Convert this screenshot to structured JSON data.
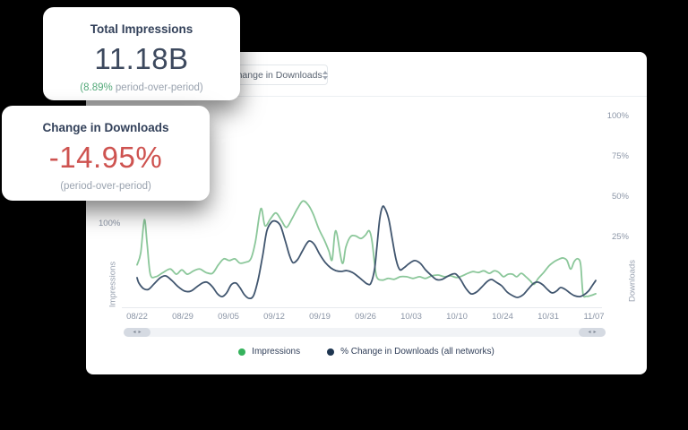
{
  "colors": {
    "line_impressions": "#8bc79a",
    "line_downloads": "#41566f",
    "value_negative": "#ce5350",
    "value_positive": "#53a979"
  },
  "cards": [
    {
      "title": "Total Impressions",
      "value": "11.18B",
      "footnote_highlight": "(8.89%",
      "footnote_rest": " period-over-period)"
    },
    {
      "title": "Change in Downloads",
      "value": "-14.95%",
      "footnote": "(period-over-period)"
    }
  ],
  "panel": {
    "dropdown": {
      "value": "Change in Downloads"
    },
    "left_axis": {
      "title": "Impressions",
      "tick": "100%"
    },
    "right_axis": {
      "title": "Downloads",
      "ticks": [
        "100%",
        "75%",
        "50%",
        "25%"
      ]
    },
    "x_axis": {
      "ticks": [
        "08/22",
        "08/29",
        "09/05",
        "09/12",
        "09/19",
        "09/26",
        "10/03",
        "10/10",
        "10/24",
        "10/31",
        "11/07"
      ]
    },
    "legend": [
      {
        "label": "Impressions",
        "color": "#35b25c"
      },
      {
        "label": "% Change in Downloads (all networks)",
        "color": "#1e3550"
      }
    ],
    "scroll_arrows": {
      "left": "◂",
      "right": "▸"
    }
  },
  "chart_data": {
    "type": "line",
    "x_ticks": [
      "08/22",
      "08/29",
      "09/05",
      "09/12",
      "09/19",
      "09/26",
      "10/03",
      "10/10",
      "10/24",
      "10/31",
      "11/07"
    ],
    "left_axis": {
      "label": "Impressions",
      "visible_ticks": [
        "100%"
      ],
      "units": "percent"
    },
    "right_axis": {
      "label": "Downloads",
      "visible_ticks": [
        "100%",
        "75%",
        "50%",
        "25%"
      ],
      "approx_range": [
        -20,
        120
      ]
    },
    "legend_position": "bottom",
    "grid": false,
    "series": [
      {
        "name": "Impressions",
        "axis": "left",
        "units": "percent_of_left_axis",
        "points": [
          [
            0,
            52
          ],
          [
            0.08,
            66
          ],
          [
            0.16,
            105
          ],
          [
            0.22,
            77
          ],
          [
            0.29,
            41
          ],
          [
            0.41,
            38
          ],
          [
            0.57,
            43
          ],
          [
            0.73,
            47
          ],
          [
            0.86,
            41
          ],
          [
            0.98,
            46
          ],
          [
            1.1,
            41
          ],
          [
            1.24,
            45
          ],
          [
            1.37,
            47
          ],
          [
            1.51,
            43
          ],
          [
            1.65,
            42
          ],
          [
            1.78,
            52
          ],
          [
            1.9,
            59
          ],
          [
            2.02,
            57
          ],
          [
            2.14,
            59
          ],
          [
            2.25,
            54
          ],
          [
            2.37,
            55
          ],
          [
            2.49,
            59
          ],
          [
            2.59,
            79
          ],
          [
            2.71,
            118
          ],
          [
            2.8,
            98
          ],
          [
            2.92,
            106
          ],
          [
            3.04,
            113
          ],
          [
            3.16,
            104
          ],
          [
            3.27,
            96
          ],
          [
            3.39,
            106
          ],
          [
            3.51,
            118
          ],
          [
            3.63,
            127
          ],
          [
            3.75,
            122
          ],
          [
            3.86,
            111
          ],
          [
            3.98,
            94
          ],
          [
            4.1,
            81
          ],
          [
            4.2,
            68
          ],
          [
            4.27,
            58
          ],
          [
            4.35,
            92
          ],
          [
            4.49,
            54
          ],
          [
            4.57,
            73
          ],
          [
            4.67,
            85
          ],
          [
            4.78,
            86
          ],
          [
            4.9,
            83
          ],
          [
            5,
            87
          ],
          [
            5.08,
            92
          ],
          [
            5.14,
            81
          ],
          [
            5.2,
            53
          ],
          [
            5.25,
            37
          ],
          [
            5.37,
            34
          ],
          [
            5.49,
            36
          ],
          [
            5.63,
            35
          ],
          [
            5.76,
            38
          ],
          [
            5.9,
            38
          ],
          [
            6.04,
            36
          ],
          [
            6.18,
            38
          ],
          [
            6.31,
            36
          ],
          [
            6.45,
            39
          ],
          [
            6.59,
            40
          ],
          [
            6.73,
            38
          ],
          [
            6.86,
            39
          ],
          [
            7,
            37
          ],
          [
            7.12,
            39
          ],
          [
            7.24,
            42
          ],
          [
            7.35,
            44
          ],
          [
            7.47,
            43
          ],
          [
            7.59,
            45
          ],
          [
            7.71,
            42
          ],
          [
            7.82,
            45
          ],
          [
            7.92,
            43
          ],
          [
            8.02,
            38
          ],
          [
            8.12,
            41
          ],
          [
            8.22,
            41
          ],
          [
            8.31,
            38
          ],
          [
            8.41,
            42
          ],
          [
            8.51,
            38
          ],
          [
            8.61,
            33
          ],
          [
            8.69,
            29
          ],
          [
            8.78,
            36
          ],
          [
            8.9,
            43
          ],
          [
            9.02,
            51
          ],
          [
            9.14,
            56
          ],
          [
            9.25,
            59
          ],
          [
            9.33,
            60
          ],
          [
            9.41,
            57
          ],
          [
            9.49,
            47
          ],
          [
            9.57,
            56
          ],
          [
            9.65,
            59
          ],
          [
            9.71,
            52
          ],
          [
            9.76,
            18
          ],
          [
            9.84,
            15
          ],
          [
            9.94,
            16
          ],
          [
            10.04,
            18
          ]
        ]
      },
      {
        "name": "% Change in Downloads (all networks)",
        "axis": "right",
        "units": "percent_of_right_axis",
        "points": [
          [
            0,
            0
          ],
          [
            0.04,
            -3.3
          ],
          [
            0.14,
            -6.7
          ],
          [
            0.25,
            -7.2
          ],
          [
            0.37,
            -3.9
          ],
          [
            0.51,
            0
          ],
          [
            0.63,
            1.1
          ],
          [
            0.76,
            -1.7
          ],
          [
            0.9,
            -5.6
          ],
          [
            1.04,
            -8.3
          ],
          [
            1.18,
            -8.3
          ],
          [
            1.31,
            -5.6
          ],
          [
            1.43,
            -3.3
          ],
          [
            1.53,
            -2.8
          ],
          [
            1.65,
            -5.6
          ],
          [
            1.76,
            -10
          ],
          [
            1.86,
            -11.7
          ],
          [
            1.96,
            -9.4
          ],
          [
            2.06,
            -4.4
          ],
          [
            2.16,
            -3.3
          ],
          [
            2.25,
            -6.1
          ],
          [
            2.35,
            -10.6
          ],
          [
            2.45,
            -12.8
          ],
          [
            2.55,
            -11.1
          ],
          [
            2.65,
            -1.1
          ],
          [
            2.75,
            13.9
          ],
          [
            2.84,
            28.9
          ],
          [
            2.94,
            34.4
          ],
          [
            3.04,
            35
          ],
          [
            3.14,
            32.2
          ],
          [
            3.24,
            23.3
          ],
          [
            3.33,
            14.4
          ],
          [
            3.41,
            9.4
          ],
          [
            3.51,
            11.1
          ],
          [
            3.61,
            16.1
          ],
          [
            3.71,
            21.1
          ],
          [
            3.78,
            22.8
          ],
          [
            3.88,
            20.6
          ],
          [
            4,
            14.4
          ],
          [
            4.12,
            9.4
          ],
          [
            4.24,
            6.1
          ],
          [
            4.35,
            4.4
          ],
          [
            4.47,
            3.9
          ],
          [
            4.59,
            4.4
          ],
          [
            4.71,
            3.3
          ],
          [
            4.82,
            1.1
          ],
          [
            4.94,
            -1.7
          ],
          [
            5.04,
            -3.9
          ],
          [
            5.12,
            -3.3
          ],
          [
            5.2,
            5.6
          ],
          [
            5.25,
            19.4
          ],
          [
            5.31,
            36.1
          ],
          [
            5.37,
            43.9
          ],
          [
            5.43,
            42.8
          ],
          [
            5.51,
            36.1
          ],
          [
            5.59,
            23.3
          ],
          [
            5.67,
            11.1
          ],
          [
            5.75,
            5
          ],
          [
            5.84,
            6.1
          ],
          [
            5.96,
            8.9
          ],
          [
            6.08,
            10.6
          ],
          [
            6.2,
            8.9
          ],
          [
            6.31,
            5
          ],
          [
            6.43,
            1.7
          ],
          [
            6.55,
            -1.1
          ],
          [
            6.67,
            -1.1
          ],
          [
            6.78,
            0.6
          ],
          [
            6.9,
            2.2
          ],
          [
            6.98,
            2.2
          ],
          [
            7.08,
            -1.1
          ],
          [
            7.2,
            -6.7
          ],
          [
            7.31,
            -10
          ],
          [
            7.43,
            -8.9
          ],
          [
            7.55,
            -5.6
          ],
          [
            7.67,
            -2.2
          ],
          [
            7.76,
            -1.1
          ],
          [
            7.86,
            -2.8
          ],
          [
            7.98,
            -5
          ],
          [
            8.1,
            -8.9
          ],
          [
            8.22,
            -11.1
          ],
          [
            8.33,
            -12.2
          ],
          [
            8.45,
            -10.6
          ],
          [
            8.57,
            -6.7
          ],
          [
            8.69,
            -3.3
          ],
          [
            8.78,
            -2.8
          ],
          [
            8.88,
            -4.4
          ],
          [
            8.98,
            -7.2
          ],
          [
            9.08,
            -9.4
          ],
          [
            9.18,
            -8.3
          ],
          [
            9.27,
            -6.1
          ],
          [
            9.37,
            -7.2
          ],
          [
            9.47,
            -9.4
          ],
          [
            9.57,
            -11.1
          ],
          [
            9.69,
            -11.7
          ],
          [
            9.78,
            -10.6
          ],
          [
            9.88,
            -8.3
          ],
          [
            9.96,
            -5
          ],
          [
            10.04,
            -1.7
          ]
        ]
      }
    ]
  }
}
